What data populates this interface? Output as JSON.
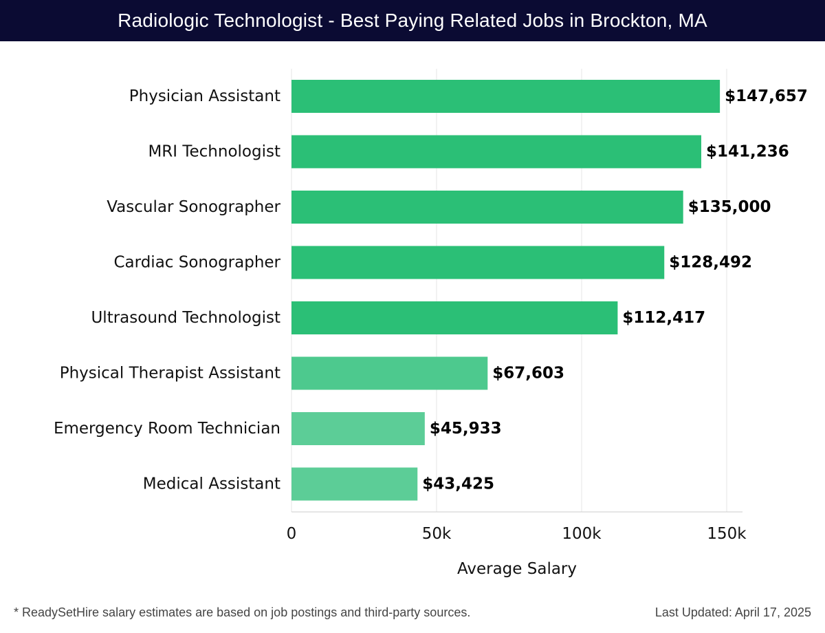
{
  "header": {
    "title": "Radiologic Technologist - Best Paying Related Jobs in Brockton, MA"
  },
  "footer": {
    "note": "* ReadySetHire salary estimates are based on job postings and third-party sources.",
    "updated": "Last Updated: April 17, 2025"
  },
  "colors": {
    "title_bg": "#0b0b33",
    "bar_high": "#2bbf76",
    "bar_mid": "#4dc98e",
    "bar_low": "#5ccd97",
    "grid": "#e6e6e6"
  },
  "chart_data": {
    "type": "bar",
    "orientation": "horizontal",
    "categories": [
      "Physician Assistant",
      "MRI Technologist",
      "Vascular Sonographer",
      "Cardiac Sonographer",
      "Ultrasound Technologist",
      "Physical Therapist Assistant",
      "Emergency Room Technician",
      "Medical Assistant"
    ],
    "values": [
      147657,
      141236,
      135000,
      128492,
      112417,
      67603,
      45933,
      43425
    ],
    "value_labels": [
      "$147,657",
      "$141,236",
      "$135,000",
      "$128,492",
      "$112,417",
      "$67,603",
      "$45,933",
      "$43,425"
    ],
    "xlabel": "Average Salary",
    "ylabel": "",
    "xlim": [
      0,
      155000
    ],
    "xticks": [
      0,
      50000,
      100000,
      150000
    ],
    "xtick_labels": [
      "0",
      "50k",
      "100k",
      "150k"
    ],
    "grid": "vertical"
  }
}
